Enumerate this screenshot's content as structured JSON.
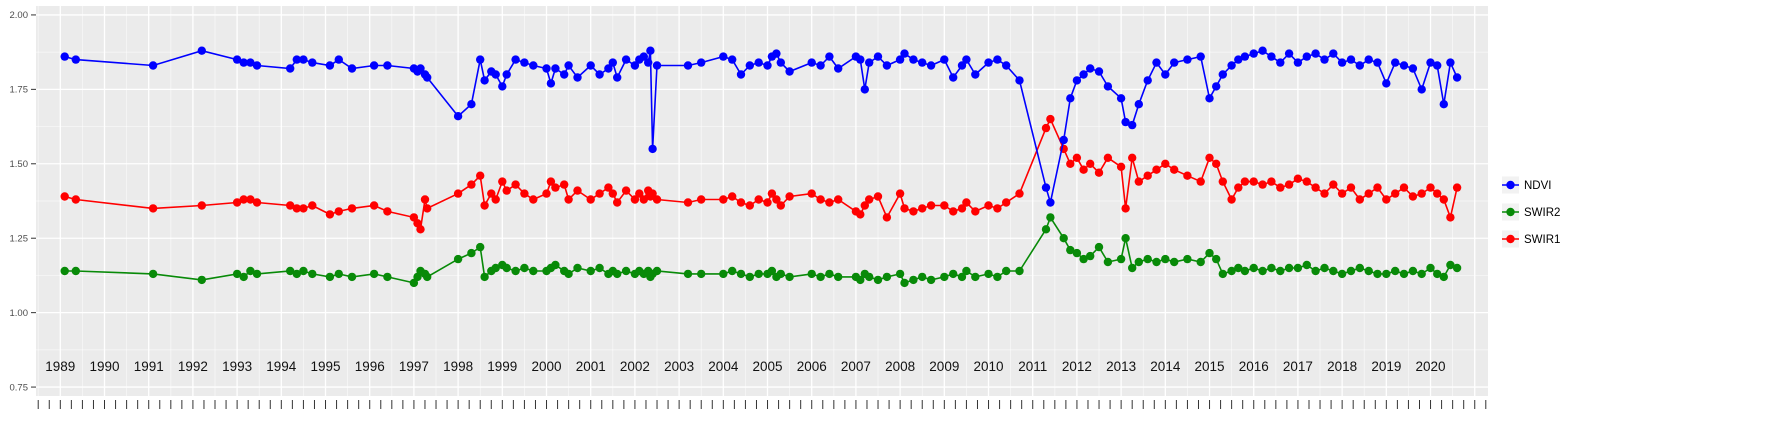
{
  "chart_data": {
    "type": "line",
    "title": "",
    "xlabel": "",
    "ylabel": "",
    "legend_position": "right",
    "grid": true,
    "panel_bg": "#EBEBEB",
    "grid_color": "#FFFFFF",
    "tick_color": "#333333",
    "xlim": [
      1988.45,
      2021.3
    ],
    "ylim": [
      0.75,
      2.0
    ],
    "y_ticks": [
      "2.00",
      "1.75",
      "1.50",
      "1.25",
      "1.00",
      "0.75"
    ],
    "y_minor_ticks": [
      1.875,
      1.625,
      1.375,
      1.125,
      0.875
    ],
    "x_ticks": [
      1989,
      1990,
      1991,
      1992,
      1993,
      1994,
      1995,
      1996,
      1997,
      1998,
      1999,
      2000,
      2001,
      2002,
      2003,
      2004,
      2005,
      2006,
      2007,
      2008,
      2009,
      2010,
      2011,
      2012,
      2013,
      2014,
      2015,
      2016,
      2017,
      2018,
      2019,
      2020
    ],
    "x": [
      1989.1,
      1989.35,
      1991.1,
      1992.2,
      1993.0,
      1993.15,
      1993.3,
      1993.45,
      1994.2,
      1994.35,
      1994.5,
      1994.7,
      1995.1,
      1995.3,
      1995.6,
      1996.1,
      1996.4,
      1997.0,
      1997.08,
      1997.15,
      1997.25,
      1997.3,
      1998.0,
      1998.3,
      1998.5,
      1998.6,
      1998.75,
      1998.85,
      1999.0,
      1999.1,
      1999.3,
      1999.5,
      1999.7,
      2000.0,
      2000.1,
      2000.2,
      2000.4,
      2000.5,
      2000.7,
      2001.0,
      2001.2,
      2001.4,
      2001.5,
      2001.6,
      2001.8,
      2002.0,
      2002.1,
      2002.2,
      2002.3,
      2002.35,
      2002.4,
      2002.5,
      2003.2,
      2003.5,
      2004.0,
      2004.2,
      2004.4,
      2004.6,
      2004.8,
      2005.0,
      2005.1,
      2005.2,
      2005.3,
      2005.5,
      2006.0,
      2006.2,
      2006.4,
      2006.6,
      2007.0,
      2007.1,
      2007.2,
      2007.3,
      2007.5,
      2007.7,
      2008.0,
      2008.1,
      2008.3,
      2008.5,
      2008.7,
      2009.0,
      2009.2,
      2009.4,
      2009.5,
      2009.7,
      2010.0,
      2010.2,
      2010.4,
      2010.7,
      2011.3,
      2011.4,
      2011.7,
      2011.85,
      2012.0,
      2012.15,
      2012.3,
      2012.5,
      2012.7,
      2013.0,
      2013.1,
      2013.25,
      2013.4,
      2013.6,
      2013.8,
      2014.0,
      2014.2,
      2014.5,
      2014.8,
      2015.0,
      2015.15,
      2015.3,
      2015.5,
      2015.65,
      2015.8,
      2016.0,
      2016.2,
      2016.4,
      2016.6,
      2016.8,
      2017.0,
      2017.2,
      2017.4,
      2017.6,
      2017.8,
      2018.0,
      2018.2,
      2018.4,
      2018.6,
      2018.8,
      2019.0,
      2019.2,
      2019.4,
      2019.6,
      2019.8,
      2020.0,
      2020.15,
      2020.3,
      2020.45,
      2020.6
    ],
    "series": [
      {
        "name": "NDVI",
        "color": "#0000FF",
        "values": [
          1.86,
          1.85,
          1.83,
          1.88,
          1.85,
          1.84,
          1.84,
          1.83,
          1.82,
          1.85,
          1.85,
          1.84,
          1.83,
          1.85,
          1.82,
          1.83,
          1.83,
          1.82,
          1.81,
          1.82,
          1.8,
          1.79,
          1.66,
          1.7,
          1.85,
          1.78,
          1.81,
          1.8,
          1.76,
          1.8,
          1.85,
          1.84,
          1.83,
          1.82,
          1.77,
          1.82,
          1.8,
          1.83,
          1.79,
          1.83,
          1.8,
          1.82,
          1.84,
          1.79,
          1.85,
          1.83,
          1.85,
          1.86,
          1.84,
          1.88,
          1.55,
          1.83,
          1.83,
          1.84,
          1.86,
          1.85,
          1.8,
          1.83,
          1.84,
          1.83,
          1.86,
          1.87,
          1.84,
          1.81,
          1.84,
          1.83,
          1.86,
          1.82,
          1.86,
          1.85,
          1.75,
          1.84,
          1.86,
          1.83,
          1.85,
          1.87,
          1.85,
          1.84,
          1.83,
          1.85,
          1.79,
          1.83,
          1.85,
          1.8,
          1.84,
          1.85,
          1.83,
          1.78,
          1.42,
          1.37,
          1.58,
          1.72,
          1.78,
          1.8,
          1.82,
          1.81,
          1.76,
          1.72,
          1.64,
          1.63,
          1.7,
          1.78,
          1.84,
          1.8,
          1.84,
          1.85,
          1.86,
          1.72,
          1.76,
          1.8,
          1.83,
          1.85,
          1.86,
          1.87,
          1.88,
          1.86,
          1.84,
          1.87,
          1.84,
          1.86,
          1.87,
          1.85,
          1.87,
          1.84,
          1.85,
          1.83,
          1.85,
          1.84,
          1.77,
          1.84,
          1.83,
          1.82,
          1.75,
          1.84,
          1.83,
          1.7,
          1.84,
          1.79
        ]
      },
      {
        "name": "SWIR2",
        "color": "#088A08",
        "values": [
          1.14,
          1.14,
          1.13,
          1.11,
          1.13,
          1.12,
          1.14,
          1.13,
          1.14,
          1.13,
          1.14,
          1.13,
          1.12,
          1.13,
          1.12,
          1.13,
          1.12,
          1.1,
          1.12,
          1.14,
          1.13,
          1.12,
          1.18,
          1.2,
          1.22,
          1.12,
          1.14,
          1.15,
          1.16,
          1.15,
          1.14,
          1.15,
          1.14,
          1.14,
          1.15,
          1.16,
          1.14,
          1.13,
          1.15,
          1.14,
          1.15,
          1.13,
          1.14,
          1.13,
          1.14,
          1.13,
          1.14,
          1.13,
          1.14,
          1.12,
          1.13,
          1.14,
          1.13,
          1.13,
          1.13,
          1.14,
          1.13,
          1.12,
          1.13,
          1.13,
          1.14,
          1.12,
          1.13,
          1.12,
          1.13,
          1.12,
          1.13,
          1.12,
          1.12,
          1.11,
          1.13,
          1.12,
          1.11,
          1.12,
          1.13,
          1.1,
          1.11,
          1.12,
          1.11,
          1.12,
          1.13,
          1.12,
          1.14,
          1.12,
          1.13,
          1.12,
          1.14,
          1.14,
          1.28,
          1.32,
          1.25,
          1.21,
          1.2,
          1.18,
          1.19,
          1.22,
          1.17,
          1.18,
          1.25,
          1.15,
          1.17,
          1.18,
          1.17,
          1.18,
          1.17,
          1.18,
          1.17,
          1.2,
          1.18,
          1.13,
          1.14,
          1.15,
          1.14,
          1.15,
          1.14,
          1.15,
          1.14,
          1.15,
          1.15,
          1.16,
          1.14,
          1.15,
          1.14,
          1.13,
          1.14,
          1.15,
          1.14,
          1.13,
          1.13,
          1.14,
          1.13,
          1.14,
          1.13,
          1.15,
          1.13,
          1.12,
          1.16,
          1.15
        ]
      },
      {
        "name": "SWIR1",
        "color": "#FF0000",
        "values": [
          1.39,
          1.38,
          1.35,
          1.36,
          1.37,
          1.38,
          1.38,
          1.37,
          1.36,
          1.35,
          1.35,
          1.36,
          1.33,
          1.34,
          1.35,
          1.36,
          1.34,
          1.32,
          1.3,
          1.28,
          1.38,
          1.35,
          1.4,
          1.43,
          1.46,
          1.36,
          1.4,
          1.38,
          1.44,
          1.41,
          1.43,
          1.4,
          1.38,
          1.4,
          1.44,
          1.42,
          1.43,
          1.38,
          1.41,
          1.38,
          1.4,
          1.42,
          1.4,
          1.37,
          1.41,
          1.38,
          1.4,
          1.38,
          1.41,
          1.39,
          1.4,
          1.38,
          1.37,
          1.38,
          1.38,
          1.39,
          1.37,
          1.36,
          1.38,
          1.37,
          1.4,
          1.38,
          1.36,
          1.39,
          1.4,
          1.38,
          1.37,
          1.38,
          1.34,
          1.33,
          1.36,
          1.38,
          1.39,
          1.32,
          1.4,
          1.35,
          1.34,
          1.35,
          1.36,
          1.36,
          1.34,
          1.35,
          1.37,
          1.34,
          1.36,
          1.35,
          1.37,
          1.4,
          1.62,
          1.65,
          1.55,
          1.5,
          1.52,
          1.48,
          1.5,
          1.47,
          1.52,
          1.49,
          1.35,
          1.52,
          1.44,
          1.46,
          1.48,
          1.5,
          1.48,
          1.46,
          1.44,
          1.52,
          1.5,
          1.44,
          1.38,
          1.42,
          1.44,
          1.44,
          1.43,
          1.44,
          1.42,
          1.43,
          1.45,
          1.44,
          1.42,
          1.4,
          1.43,
          1.4,
          1.42,
          1.38,
          1.4,
          1.42,
          1.38,
          1.4,
          1.42,
          1.39,
          1.4,
          1.42,
          1.4,
          1.38,
          1.32,
          1.42
        ]
      }
    ]
  },
  "legend": {
    "items": [
      {
        "label": "NDVI"
      },
      {
        "label": "SWIR2"
      },
      {
        "label": "SWIR1"
      }
    ]
  }
}
